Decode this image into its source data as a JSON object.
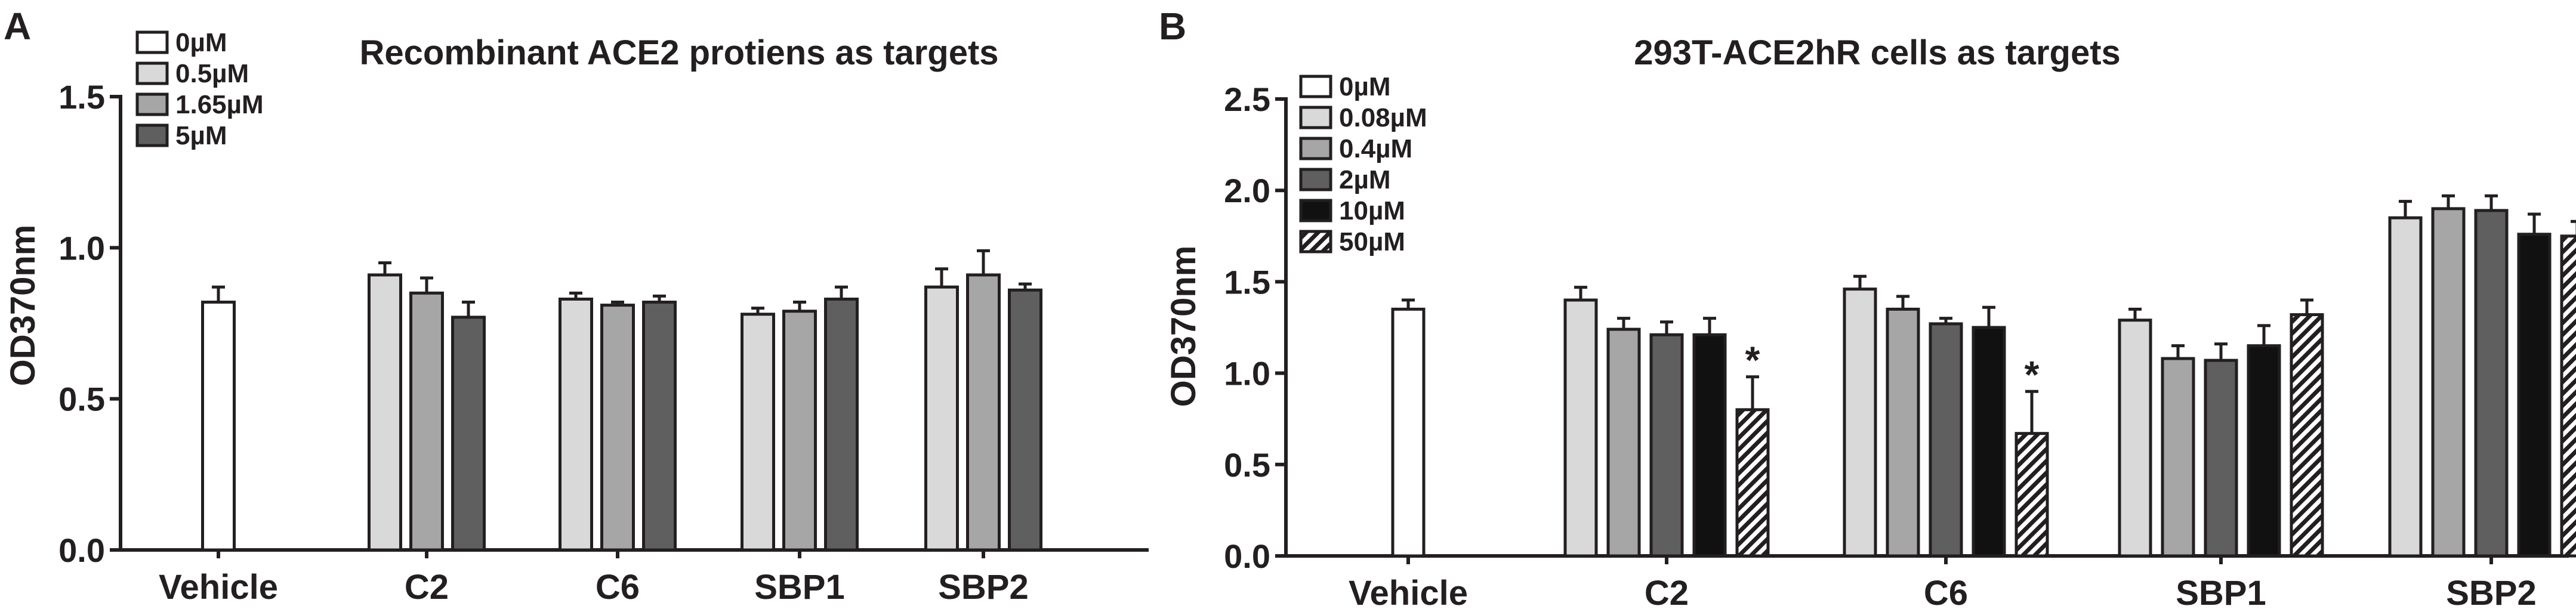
{
  "colors": {
    "white": "#ffffff",
    "light": "#d9d9d9",
    "mid": "#a6a6a6",
    "dark": "#5f5f5f",
    "black": "#111111",
    "hatch": "hatch"
  },
  "chart_data": [
    {
      "type": "bar",
      "panel": "A",
      "title": "Recombinant ACE2 protiens as targets",
      "ylabel": "OD370nm",
      "xlabel": "",
      "ylim": [
        0,
        1.5
      ],
      "yticks": [
        "0.0",
        "0.5",
        "1.0",
        "1.5"
      ],
      "ytick_values": [
        0,
        0.5,
        1.0,
        1.5
      ],
      "grid": false,
      "legend_position": "top-left",
      "legend": [
        {
          "name": "0µM",
          "color": "white"
        },
        {
          "name": "0.5µM",
          "color": "light"
        },
        {
          "name": "1.65µM",
          "color": "mid"
        },
        {
          "name": "5µM",
          "color": "dark"
        }
      ],
      "categories": [
        "Vehicle",
        "C2",
        "C6",
        "SBP1",
        "SBP2"
      ],
      "groups": [
        {
          "category": "Vehicle",
          "bars": [
            {
              "series": "0µM",
              "value": 0.82,
              "err": 0.05
            }
          ]
        },
        {
          "category": "C2",
          "bars": [
            {
              "series": "0.5µM",
              "value": 0.91,
              "err": 0.04
            },
            {
              "series": "1.65µM",
              "value": 0.85,
              "err": 0.05
            },
            {
              "series": "5µM",
              "value": 0.77,
              "err": 0.05
            }
          ]
        },
        {
          "category": "C6",
          "bars": [
            {
              "series": "0.5µM",
              "value": 0.83,
              "err": 0.02
            },
            {
              "series": "1.65µM",
              "value": 0.81,
              "err": 0.01
            },
            {
              "series": "5µM",
              "value": 0.82,
              "err": 0.02
            }
          ]
        },
        {
          "category": "SBP1",
          "bars": [
            {
              "series": "0.5µM",
              "value": 0.78,
              "err": 0.02
            },
            {
              "series": "1.65µM",
              "value": 0.79,
              "err": 0.03
            },
            {
              "series": "5µM",
              "value": 0.83,
              "err": 0.04
            }
          ]
        },
        {
          "category": "SBP2",
          "bars": [
            {
              "series": "0.5µM",
              "value": 0.87,
              "err": 0.06
            },
            {
              "series": "1.65µM",
              "value": 0.91,
              "err": 0.08
            },
            {
              "series": "5µM",
              "value": 0.86,
              "err": 0.02
            }
          ]
        }
      ]
    },
    {
      "type": "bar",
      "panel": "B",
      "title": "293T-ACE2hR cells as targets",
      "ylabel": "OD370nm",
      "xlabel": "",
      "ylim": [
        0,
        2.5
      ],
      "yticks": [
        "0.0",
        "0.5",
        "1.0",
        "1.5",
        "2.0",
        "2.5"
      ],
      "ytick_values": [
        0,
        0.5,
        1.0,
        1.5,
        2.0,
        2.5
      ],
      "grid": false,
      "legend_position": "top-left",
      "legend": [
        {
          "name": "0µM",
          "color": "white"
        },
        {
          "name": "0.08µM",
          "color": "light"
        },
        {
          "name": "0.4µM",
          "color": "mid"
        },
        {
          "name": "2µM",
          "color": "dark"
        },
        {
          "name": "10µM",
          "color": "black"
        },
        {
          "name": "50µM",
          "color": "hatch"
        }
      ],
      "categories": [
        "Vehicle",
        "C2",
        "C6",
        "SBP1",
        "SBP2"
      ],
      "groups": [
        {
          "category": "Vehicle",
          "bars": [
            {
              "series": "0µM",
              "value": 1.35,
              "err": 0.05
            }
          ]
        },
        {
          "category": "C2",
          "bars": [
            {
              "series": "0.08µM",
              "value": 1.4,
              "err": 0.07
            },
            {
              "series": "0.4µM",
              "value": 1.24,
              "err": 0.06
            },
            {
              "series": "2µM",
              "value": 1.21,
              "err": 0.07
            },
            {
              "series": "10µM",
              "value": 1.21,
              "err": 0.09
            },
            {
              "series": "50µM",
              "value": 0.8,
              "err": 0.18,
              "annotation": "*"
            }
          ]
        },
        {
          "category": "C6",
          "bars": [
            {
              "series": "0.08µM",
              "value": 1.46,
              "err": 0.07
            },
            {
              "series": "0.4µM",
              "value": 1.35,
              "err": 0.07
            },
            {
              "series": "2µM",
              "value": 1.27,
              "err": 0.03
            },
            {
              "series": "10µM",
              "value": 1.25,
              "err": 0.11
            },
            {
              "series": "50µM",
              "value": 0.67,
              "err": 0.23,
              "annotation": "*"
            }
          ]
        },
        {
          "category": "SBP1",
          "bars": [
            {
              "series": "0.08µM",
              "value": 1.29,
              "err": 0.06
            },
            {
              "series": "0.4µM",
              "value": 1.08,
              "err": 0.07
            },
            {
              "series": "2µM",
              "value": 1.07,
              "err": 0.09
            },
            {
              "series": "10µM",
              "value": 1.15,
              "err": 0.11
            },
            {
              "series": "50µM",
              "value": 1.32,
              "err": 0.08
            }
          ]
        },
        {
          "category": "SBP2",
          "bars": [
            {
              "series": "0.08µM",
              "value": 1.85,
              "err": 0.09
            },
            {
              "series": "0.4µM",
              "value": 1.9,
              "err": 0.07
            },
            {
              "series": "2µM",
              "value": 1.89,
              "err": 0.08
            },
            {
              "series": "10µM",
              "value": 1.76,
              "err": 0.11
            },
            {
              "series": "50µM",
              "value": 1.75,
              "err": 0.08
            }
          ]
        }
      ]
    }
  ]
}
